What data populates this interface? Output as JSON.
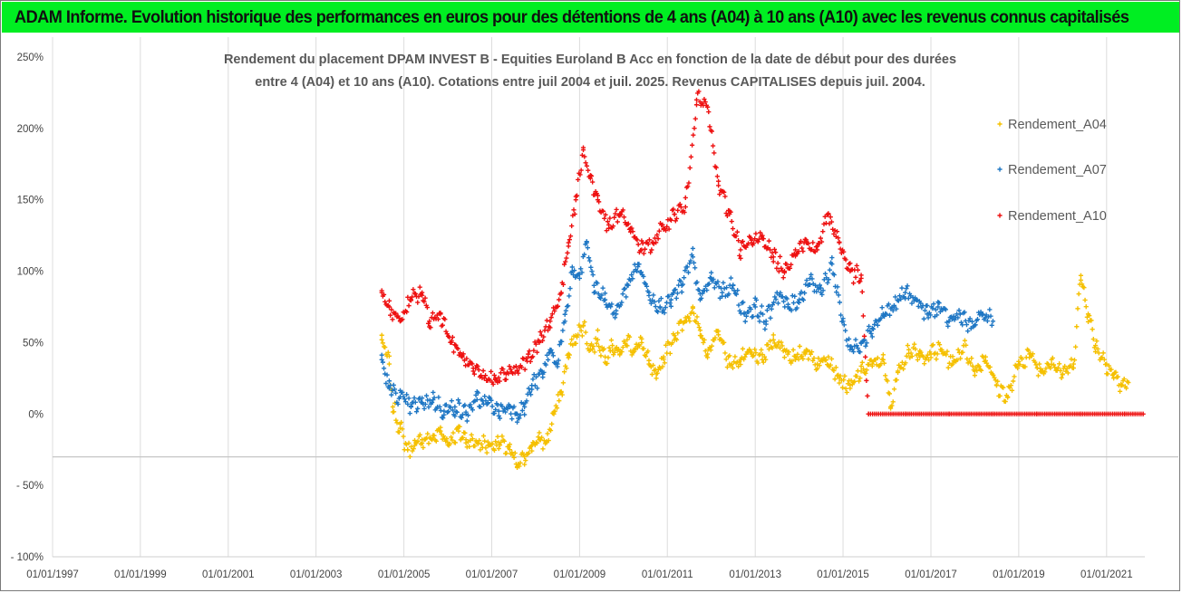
{
  "banner": {
    "title": "ADAM Informe. Evolution historique des performances en euros pour des détentions de 4 ans (A04) à 10 ans (A10) avec les revenus connus capitalisés"
  },
  "chart_data": {
    "type": "scatter",
    "title_line1": "Rendement du placement DPAM INVEST B - Equities Euroland B Acc en fonction de la date de début pour des durées",
    "title_line2": "entre 4 (A04) et 10 ans (A10). Cotations entre juil 2004 et juil. 2025. Revenus CAPITALISES depuis juil. 2004.",
    "xlabel": "",
    "ylabel": "",
    "x_range": [
      "1997-01-01",
      "2021-11-15"
    ],
    "ylim": [
      -100,
      250
    ],
    "y_ticks": [
      "250%",
      "200%",
      "150%",
      "100%",
      "50%",
      "0%",
      "- 50%",
      "- 100%"
    ],
    "y_tick_values": [
      250,
      200,
      150,
      100,
      50,
      0,
      -50,
      -100
    ],
    "x_ticks": [
      "01/01/1997",
      "01/01/1999",
      "01/01/2001",
      "01/01/2003",
      "01/01/2005",
      "01/01/2007",
      "01/01/2009",
      "01/01/2011",
      "01/01/2013",
      "01/01/2015",
      "01/01/2017",
      "01/01/2019",
      "01/01/2021"
    ],
    "grid": "vertical lines at x ticks, horizontal reference line at -30%",
    "reference_line_y": -30,
    "legend_position": "right",
    "series": [
      {
        "name": "Rendement_A04",
        "color": "#f5c000",
        "marker": "+",
        "points": [
          [
            "2004-07-01",
            52
          ],
          [
            "2004-09-01",
            35
          ],
          [
            "2004-10-01",
            5
          ],
          [
            "2004-12-01",
            -10
          ],
          [
            "2005-02-01",
            -25
          ],
          [
            "2005-04-01",
            -22
          ],
          [
            "2005-06-01",
            -18
          ],
          [
            "2005-09-01",
            -17
          ],
          [
            "2005-11-01",
            -12
          ],
          [
            "2006-01-01",
            -20
          ],
          [
            "2006-04-01",
            -12
          ],
          [
            "2006-06-01",
            -18
          ],
          [
            "2006-09-01",
            -20
          ],
          [
            "2006-12-01",
            -22
          ],
          [
            "2007-03-01",
            -20
          ],
          [
            "2007-06-01",
            -25
          ],
          [
            "2007-08-01",
            -37
          ],
          [
            "2007-10-01",
            -30
          ],
          [
            "2007-12-01",
            -22
          ],
          [
            "2008-02-01",
            -18
          ],
          [
            "2008-04-01",
            -20
          ],
          [
            "2008-06-01",
            0
          ],
          [
            "2008-08-01",
            15
          ],
          [
            "2008-10-01",
            42
          ],
          [
            "2008-12-01",
            55
          ],
          [
            "2009-02-01",
            62
          ],
          [
            "2009-04-01",
            45
          ],
          [
            "2009-06-01",
            52
          ],
          [
            "2009-08-01",
            40
          ],
          [
            "2009-10-01",
            48
          ],
          [
            "2009-12-01",
            42
          ],
          [
            "2010-02-01",
            52
          ],
          [
            "2010-04-01",
            45
          ],
          [
            "2010-06-01",
            50
          ],
          [
            "2010-08-01",
            35
          ],
          [
            "2010-10-01",
            25
          ],
          [
            "2010-12-01",
            40
          ],
          [
            "2011-03-01",
            55
          ],
          [
            "2011-06-01",
            65
          ],
          [
            "2011-08-01",
            75
          ],
          [
            "2011-10-01",
            55
          ],
          [
            "2011-12-01",
            42
          ],
          [
            "2012-03-01",
            58
          ],
          [
            "2012-06-01",
            35
          ],
          [
            "2012-09-01",
            38
          ],
          [
            "2012-12-01",
            42
          ],
          [
            "2013-03-01",
            38
          ],
          [
            "2013-06-01",
            52
          ],
          [
            "2013-09-01",
            45
          ],
          [
            "2013-12-01",
            38
          ],
          [
            "2014-03-01",
            45
          ],
          [
            "2014-06-01",
            35
          ],
          [
            "2014-09-01",
            40
          ],
          [
            "2014-12-01",
            25
          ],
          [
            "2015-03-01",
            18
          ],
          [
            "2015-06-01",
            30
          ],
          [
            "2015-09-01",
            35
          ],
          [
            "2015-12-01",
            38
          ],
          [
            "2016-02-01",
            5
          ],
          [
            "2016-04-01",
            30
          ],
          [
            "2016-07-01",
            45
          ],
          [
            "2016-10-01",
            40
          ],
          [
            "2017-01-01",
            42
          ],
          [
            "2017-04-01",
            45
          ],
          [
            "2017-07-01",
            35
          ],
          [
            "2017-10-01",
            48
          ],
          [
            "2018-01-01",
            30
          ],
          [
            "2018-04-01",
            40
          ],
          [
            "2018-07-01",
            20
          ],
          [
            "2018-10-01",
            12
          ],
          [
            "2019-01-01",
            35
          ],
          [
            "2019-04-01",
            42
          ],
          [
            "2019-07-01",
            30
          ],
          [
            "2019-10-01",
            38
          ],
          [
            "2020-01-01",
            28
          ],
          [
            "2020-04-01",
            35
          ],
          [
            "2020-06-01",
            97
          ],
          [
            "2020-08-01",
            70
          ],
          [
            "2020-10-01",
            48
          ],
          [
            "2021-01-01",
            35
          ],
          [
            "2021-03-01",
            28
          ],
          [
            "2021-05-01",
            20
          ],
          [
            "2021-07-01",
            22
          ]
        ]
      },
      {
        "name": "Rendement_A07",
        "color": "#1f77c4",
        "marker": "+",
        "points": [
          [
            "2004-07-01",
            38
          ],
          [
            "2004-09-01",
            18
          ],
          [
            "2004-12-01",
            12
          ],
          [
            "2005-03-01",
            5
          ],
          [
            "2005-06-01",
            8
          ],
          [
            "2005-09-01",
            10
          ],
          [
            "2005-12-01",
            2
          ],
          [
            "2006-03-01",
            5
          ],
          [
            "2006-06-01",
            0
          ],
          [
            "2006-09-01",
            10
          ],
          [
            "2006-12-01",
            8
          ],
          [
            "2007-03-01",
            2
          ],
          [
            "2007-06-01",
            5
          ],
          [
            "2007-08-01",
            0
          ],
          [
            "2007-10-01",
            5
          ],
          [
            "2007-12-01",
            20
          ],
          [
            "2008-03-01",
            28
          ],
          [
            "2008-05-01",
            45
          ],
          [
            "2008-07-01",
            35
          ],
          [
            "2008-09-01",
            65
          ],
          [
            "2008-11-01",
            100
          ],
          [
            "2009-01-01",
            95
          ],
          [
            "2009-03-01",
            120
          ],
          [
            "2009-05-01",
            90
          ],
          [
            "2009-08-01",
            80
          ],
          [
            "2009-11-01",
            70
          ],
          [
            "2010-02-01",
            90
          ],
          [
            "2010-05-01",
            105
          ],
          [
            "2010-08-01",
            85
          ],
          [
            "2010-11-01",
            75
          ],
          [
            "2011-02-01",
            80
          ],
          [
            "2011-05-01",
            90
          ],
          [
            "2011-08-01",
            110
          ],
          [
            "2011-10-01",
            80
          ],
          [
            "2012-01-01",
            95
          ],
          [
            "2012-04-01",
            85
          ],
          [
            "2012-07-01",
            90
          ],
          [
            "2012-10-01",
            70
          ],
          [
            "2013-01-01",
            75
          ],
          [
            "2013-04-01",
            65
          ],
          [
            "2013-07-01",
            85
          ],
          [
            "2013-10-01",
            75
          ],
          [
            "2014-01-01",
            80
          ],
          [
            "2014-04-01",
            95
          ],
          [
            "2014-07-01",
            85
          ],
          [
            "2014-10-01",
            105
          ],
          [
            "2015-01-01",
            65
          ],
          [
            "2015-03-01",
            45
          ],
          [
            "2015-06-01",
            50
          ],
          [
            "2015-09-01",
            60
          ],
          [
            "2015-12-01",
            70
          ],
          [
            "2016-03-01",
            75
          ],
          [
            "2016-06-01",
            85
          ],
          [
            "2016-09-01",
            80
          ],
          [
            "2016-12-01",
            70
          ],
          [
            "2017-03-01",
            75
          ],
          [
            "2017-06-01",
            65
          ],
          [
            "2017-09-01",
            70
          ],
          [
            "2017-12-01",
            60
          ],
          [
            "2018-03-01",
            70
          ],
          [
            "2018-06-01",
            65
          ]
        ]
      },
      {
        "name": "Rendement_A10",
        "color": "#ee1111",
        "marker": "+",
        "points": [
          [
            "2004-07-01",
            85
          ],
          [
            "2004-09-01",
            75
          ],
          [
            "2004-12-01",
            65
          ],
          [
            "2005-03-01",
            80
          ],
          [
            "2005-06-01",
            85
          ],
          [
            "2005-08-01",
            65
          ],
          [
            "2005-11-01",
            70
          ],
          [
            "2006-02-01",
            50
          ],
          [
            "2006-05-01",
            40
          ],
          [
            "2006-08-01",
            30
          ],
          [
            "2006-11-01",
            25
          ],
          [
            "2007-02-01",
            25
          ],
          [
            "2007-05-01",
            28
          ],
          [
            "2007-08-01",
            30
          ],
          [
            "2007-11-01",
            40
          ],
          [
            "2008-02-01",
            50
          ],
          [
            "2008-05-01",
            65
          ],
          [
            "2008-08-01",
            85
          ],
          [
            "2008-10-01",
            120
          ],
          [
            "2008-12-01",
            150
          ],
          [
            "2009-02-01",
            185
          ],
          [
            "2009-04-01",
            165
          ],
          [
            "2009-06-01",
            150
          ],
          [
            "2009-09-01",
            130
          ],
          [
            "2009-12-01",
            140
          ],
          [
            "2010-03-01",
            130
          ],
          [
            "2010-06-01",
            115
          ],
          [
            "2010-09-01",
            120
          ],
          [
            "2010-12-01",
            130
          ],
          [
            "2011-03-01",
            140
          ],
          [
            "2011-06-01",
            145
          ],
          [
            "2011-09-01",
            220
          ],
          [
            "2011-12-01",
            215
          ],
          [
            "2012-03-01",
            160
          ],
          [
            "2012-06-01",
            140
          ],
          [
            "2012-09-01",
            115
          ],
          [
            "2012-12-01",
            120
          ],
          [
            "2013-03-01",
            125
          ],
          [
            "2013-06-01",
            110
          ],
          [
            "2013-09-01",
            100
          ],
          [
            "2013-12-01",
            115
          ],
          [
            "2014-03-01",
            120
          ],
          [
            "2014-06-01",
            115
          ],
          [
            "2014-09-01",
            140
          ],
          [
            "2014-12-01",
            120
          ],
          [
            "2015-03-01",
            100
          ],
          [
            "2015-06-01",
            95
          ],
          [
            "2015-08-01",
            0
          ],
          [
            "2016-06-01",
            0
          ],
          [
            "2017-06-01",
            0
          ],
          [
            "2018-06-01",
            0
          ],
          [
            "2019-06-01",
            0
          ],
          [
            "2020-06-01",
            0
          ],
          [
            "2021-06-01",
            0
          ],
          [
            "2021-11-01",
            0
          ]
        ]
      }
    ]
  }
}
